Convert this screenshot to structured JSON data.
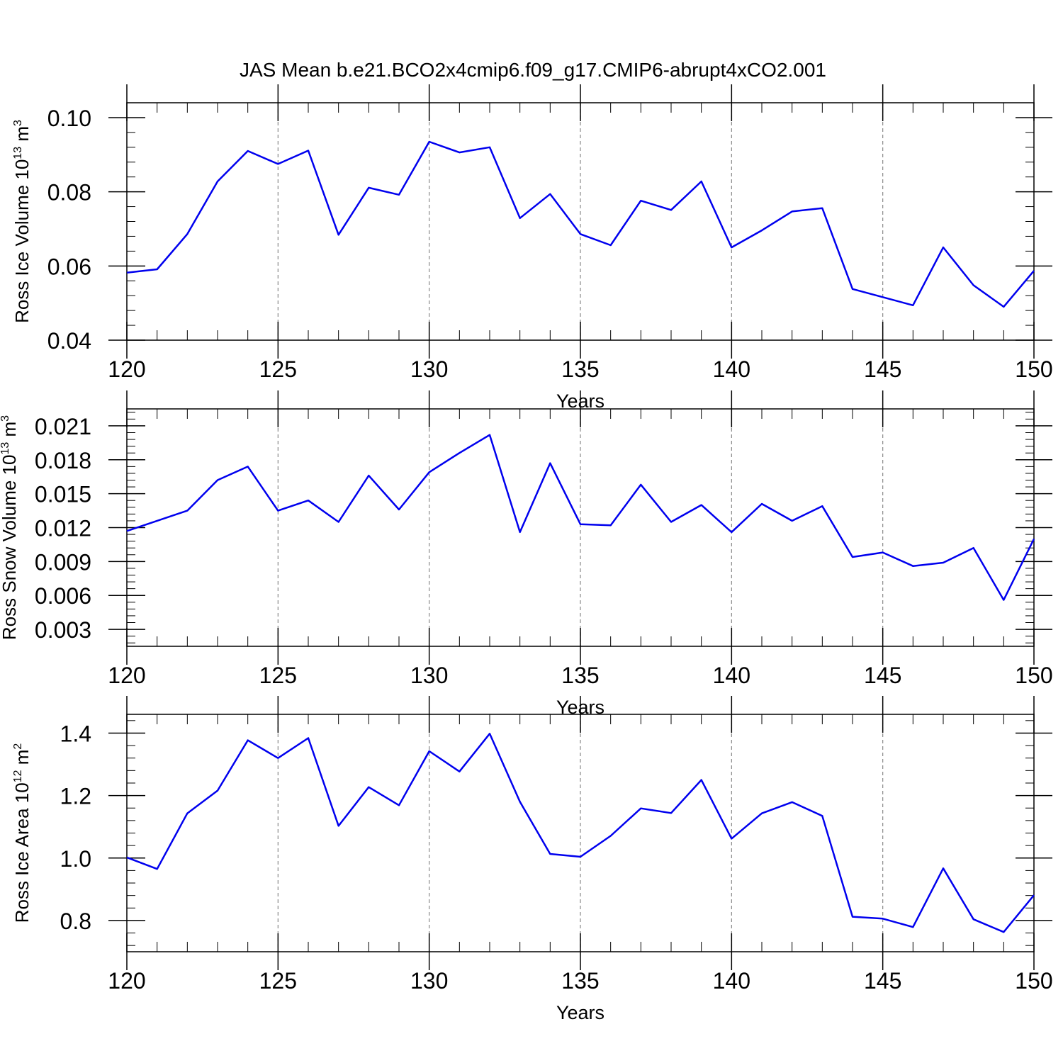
{
  "title": "JAS Mean b.e21.BCO2x4cmip6.f09_g17.CMIP6-abrupt4xCO2.001",
  "chart_data": [
    {
      "type": "line",
      "name": "ross-ice-volume",
      "ylabel": "Ross Ice Volume 10",
      "ylabel_exp": "13",
      "ylabel_unit": " m",
      "ylabel_unit_exp": "3",
      "xlabel": "Years",
      "xlim": [
        120,
        150
      ],
      "ylim": [
        0.04,
        0.104
      ],
      "xticks": [
        120,
        125,
        130,
        135,
        140,
        145,
        150
      ],
      "xtick_labels": [
        "120",
        "125",
        "130",
        "135",
        "140",
        "145",
        "150"
      ],
      "yticks": [
        0.04,
        0.06,
        0.08,
        0.1
      ],
      "ytick_labels": [
        "0.04",
        "0.06",
        "0.08",
        "0.10"
      ],
      "grid": "vertical dashed at major x ticks",
      "line_color": "#0000ee",
      "x": [
        120,
        121,
        122,
        123,
        124,
        125,
        126,
        127,
        128,
        129,
        130,
        131,
        132,
        133,
        134,
        135,
        136,
        137,
        138,
        139,
        140,
        141,
        142,
        143,
        144,
        145,
        146,
        147,
        148,
        149,
        150
      ],
      "values": [
        0.0582,
        0.0591,
        0.0686,
        0.0828,
        0.091,
        0.0875,
        0.0911,
        0.0684,
        0.0811,
        0.0792,
        0.0935,
        0.0906,
        0.092,
        0.0729,
        0.0794,
        0.0686,
        0.0656,
        0.0776,
        0.0751,
        0.0828,
        0.065,
        0.0696,
        0.0747,
        0.0756,
        0.0538,
        0.0516,
        0.0494,
        0.065,
        0.0548,
        0.049,
        0.0587
      ]
    },
    {
      "type": "line",
      "name": "ross-snow-volume",
      "ylabel": "Ross Snow Volume 10",
      "ylabel_exp": "13",
      "ylabel_unit": " m",
      "ylabel_unit_exp": "3",
      "xlabel": "Years",
      "xlim": [
        120,
        150
      ],
      "ylim": [
        0.0015,
        0.0225
      ],
      "xticks": [
        120,
        125,
        130,
        135,
        140,
        145,
        150
      ],
      "xtick_labels": [
        "120",
        "125",
        "130",
        "135",
        "140",
        "145",
        "150"
      ],
      "yticks": [
        0.003,
        0.006,
        0.009,
        0.012,
        0.015,
        0.018,
        0.021
      ],
      "ytick_labels": [
        "0.003",
        "0.006",
        "0.009",
        "0.012",
        "0.015",
        "0.018",
        "0.021"
      ],
      "grid": "vertical dashed at major x ticks",
      "line_color": "#0000ee",
      "x": [
        120,
        121,
        122,
        123,
        124,
        125,
        126,
        127,
        128,
        129,
        130,
        131,
        132,
        133,
        134,
        135,
        136,
        137,
        138,
        139,
        140,
        141,
        142,
        143,
        144,
        145,
        146,
        147,
        148,
        149,
        150
      ],
      "values": [
        0.0117,
        0.0126,
        0.0135,
        0.0162,
        0.0174,
        0.0135,
        0.0144,
        0.0125,
        0.0166,
        0.0136,
        0.0169,
        0.0186,
        0.0202,
        0.0116,
        0.0177,
        0.0123,
        0.0122,
        0.0158,
        0.0125,
        0.014,
        0.0116,
        0.0141,
        0.0126,
        0.0139,
        0.0094,
        0.0098,
        0.0086,
        0.0089,
        0.0102,
        0.0056,
        0.011
      ]
    },
    {
      "type": "line",
      "name": "ross-ice-area",
      "ylabel": "Ross Ice Area 10",
      "ylabel_exp": "12",
      "ylabel_unit": " m",
      "ylabel_unit_exp": "2",
      "xlabel": "Years",
      "xlim": [
        120,
        150
      ],
      "ylim": [
        0.7,
        1.46
      ],
      "xticks": [
        120,
        125,
        130,
        135,
        140,
        145,
        150
      ],
      "xtick_labels": [
        "120",
        "125",
        "130",
        "135",
        "140",
        "145",
        "150"
      ],
      "yticks": [
        0.8,
        1.0,
        1.2,
        1.4
      ],
      "ytick_labels": [
        "0.8",
        "1.0",
        "1.2",
        "1.4"
      ],
      "grid": "vertical dashed at major x ticks",
      "line_color": "#0000ee",
      "x": [
        120,
        121,
        122,
        123,
        124,
        125,
        126,
        127,
        128,
        129,
        130,
        131,
        132,
        133,
        134,
        135,
        136,
        137,
        138,
        139,
        140,
        141,
        142,
        143,
        144,
        145,
        146,
        147,
        148,
        149,
        150
      ],
      "values": [
        1.002,
        0.965,
        1.143,
        1.216,
        1.377,
        1.32,
        1.384,
        1.103,
        1.227,
        1.169,
        1.342,
        1.277,
        1.398,
        1.18,
        1.013,
        1.004,
        1.071,
        1.159,
        1.144,
        1.25,
        1.062,
        1.143,
        1.179,
        1.135,
        0.812,
        0.806,
        0.779,
        0.967,
        0.804,
        0.763,
        0.881
      ]
    }
  ]
}
